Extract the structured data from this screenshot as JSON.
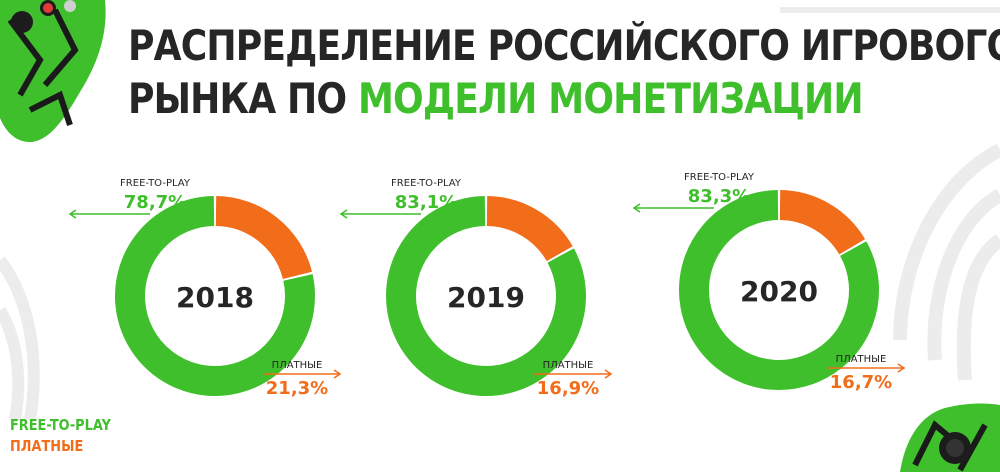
{
  "title": {
    "line1": "РАСПРЕДЕЛЕНИЕ РОССИЙСКОГО ИГРОВОГО",
    "line2_prefix": "РЫНКА ПО ",
    "line2_accent": "МОДЕЛИ МОНЕТИЗАЦИИ"
  },
  "legend": {
    "free_to_play": "FREE-TO-PLAY",
    "paid": "ПЛАТНЫЕ"
  },
  "colors": {
    "free_to_play": "#3fbf2c",
    "paid": "#f26d1a",
    "title": "#262626",
    "arrow": "#9a9a9a"
  },
  "chart_data": {
    "type": "pie",
    "variant": "donut",
    "series_names": [
      "FREE-TO-PLAY",
      "ПЛАТНЫЕ"
    ],
    "charts": [
      {
        "year": "2018",
        "free_to_play": 78.7,
        "paid": 21.3,
        "free_to_play_label": "78,7%",
        "paid_label": "21,3%"
      },
      {
        "year": "2019",
        "free_to_play": 83.1,
        "paid": 16.9,
        "free_to_play_label": "83,1%",
        "paid_label": "16,9%"
      },
      {
        "year": "2020",
        "free_to_play": 83.3,
        "paid": 16.7,
        "free_to_play_label": "83,3%",
        "paid_label": "16,7%"
      }
    ]
  }
}
